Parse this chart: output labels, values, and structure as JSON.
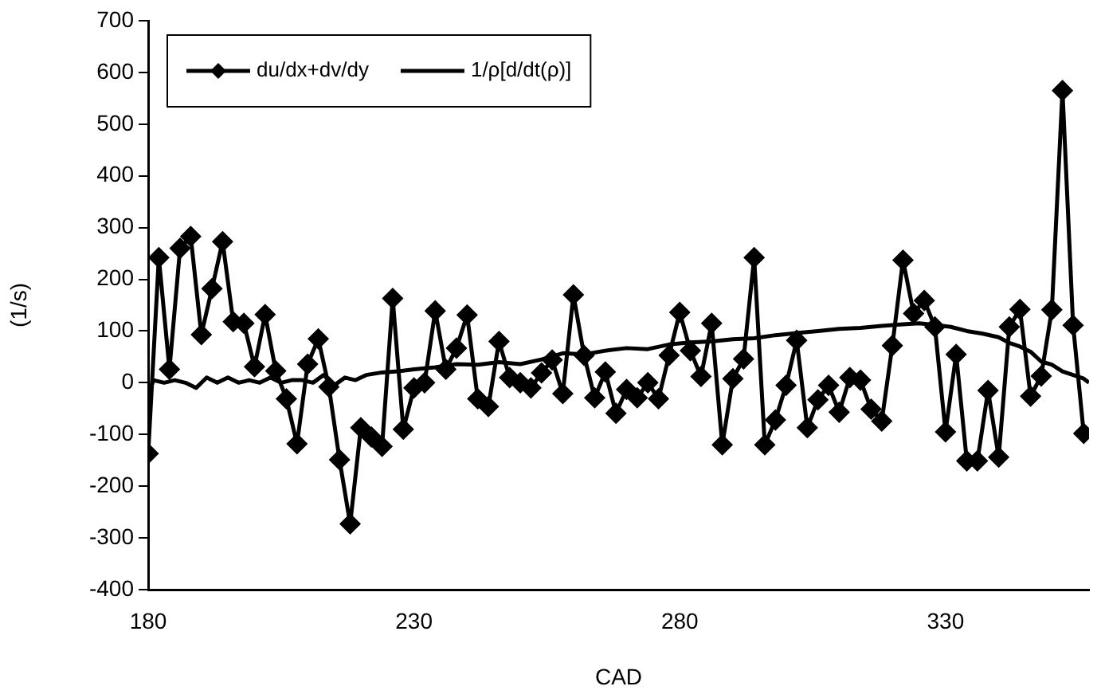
{
  "chart_data": {
    "type": "line",
    "xlabel": "CAD",
    "ylabel": "(1/s)",
    "xlim": [
      180,
      357
    ],
    "xticks": [
      180,
      230,
      280,
      330
    ],
    "ylim": [
      -400,
      700
    ],
    "yticks": [
      -400,
      -300,
      -200,
      -100,
      0,
      100,
      200,
      300,
      400,
      500,
      600,
      700
    ],
    "grid": false,
    "legend": "top left",
    "marker": "diamond",
    "line_style": "solid",
    "series": [
      {
        "name": "du/dx+dv/dy",
        "color": "#000000",
        "x": [
          180,
          182,
          184,
          186,
          188,
          190,
          192,
          194,
          196,
          198,
          200,
          202,
          204,
          206,
          208,
          210,
          212,
          214,
          216,
          218,
          220,
          222,
          224,
          226,
          228,
          230,
          232,
          234,
          236,
          238,
          240,
          242,
          244,
          246,
          248,
          250,
          252,
          254,
          256,
          258,
          260,
          262,
          264,
          266,
          268,
          270,
          272,
          274,
          276,
          278,
          280,
          282,
          284,
          286,
          288,
          290,
          292,
          294,
          296,
          298,
          300,
          302,
          304,
          306,
          308,
          310,
          312,
          314,
          316,
          318,
          320,
          322,
          324,
          326,
          328,
          330,
          332,
          334,
          336,
          338,
          340,
          342,
          344,
          346,
          348,
          350,
          352,
          354,
          356
        ],
        "values": [
          -137,
          242,
          26,
          260,
          283,
          93,
          182,
          273,
          118,
          115,
          31,
          132,
          23,
          -31,
          -118,
          36,
          85,
          -8,
          -149,
          -273,
          -87,
          -105,
          -123,
          163,
          -90,
          -10,
          0,
          139,
          26,
          67,
          131,
          -31,
          -46,
          80,
          10,
          0,
          -10,
          19,
          44,
          -21,
          170,
          53,
          -29,
          21,
          -59,
          -13,
          -29,
          0,
          -31,
          53,
          136,
          62,
          12,
          115,
          -120,
          8,
          46,
          242,
          -120,
          -72,
          -5,
          82,
          -87,
          -33,
          -5,
          -57,
          10,
          5,
          -51,
          -74,
          72,
          237,
          134,
          159,
          108,
          -95,
          55,
          -151,
          -151,
          -15,
          -144,
          108,
          142,
          -26,
          13,
          141,
          565,
          111,
          -98
        ]
      },
      {
        "name": "1/ρ[d/dt(ρ)]",
        "color": "#000000",
        "marker": "none",
        "x": [
          180,
          181,
          183,
          185,
          187,
          189,
          191,
          193,
          195,
          197,
          199,
          201,
          203,
          205,
          207,
          209,
          211,
          213,
          215,
          217,
          219,
          221,
          224,
          227,
          230,
          234,
          238,
          242,
          246,
          250,
          254,
          258,
          262,
          266,
          270,
          274,
          278,
          282,
          286,
          290,
          294,
          298,
          302,
          306,
          310,
          314,
          318,
          322,
          325,
          328,
          331,
          334,
          337,
          340,
          342,
          344,
          346,
          348,
          350,
          352,
          354,
          356,
          357
        ],
        "values": [
          -23,
          5,
          0,
          5,
          0,
          -10,
          10,
          0,
          10,
          0,
          5,
          0,
          10,
          0,
          5,
          5,
          0,
          15,
          -5,
          10,
          5,
          15,
          20,
          22,
          26,
          30,
          36,
          35,
          40,
          36,
          45,
          57,
          55,
          62,
          67,
          65,
          74,
          78,
          80,
          84,
          86,
          92,
          96,
          100,
          104,
          106,
          110,
          113,
          115,
          112,
          108,
          100,
          95,
          88,
          77,
          70,
          60,
          41,
          35,
          22,
          15,
          8,
          0
        ]
      }
    ]
  }
}
